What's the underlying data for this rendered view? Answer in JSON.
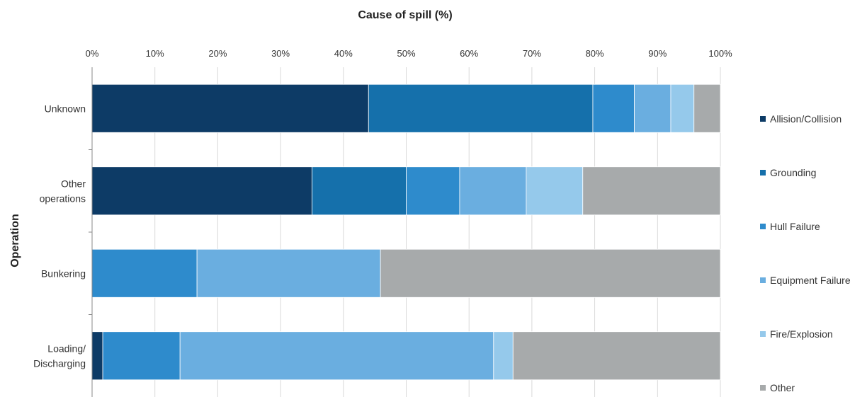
{
  "chart_data": {
    "type": "bar",
    "orientation": "horizontal",
    "stacked": true,
    "title": "Cause of spill (%)",
    "xlabel": "Cause of spill (%)",
    "ylabel": "Operation",
    "xlim": [
      0,
      100
    ],
    "x_ticks": [
      "0%",
      "10%",
      "20%",
      "30%",
      "40%",
      "50%",
      "60%",
      "70%",
      "80%",
      "90%",
      "100%"
    ],
    "categories": [
      [
        "Unknown"
      ],
      [
        "Other",
        "operations"
      ],
      [
        "Bunkering"
      ],
      [
        "Loading/",
        "Discharging"
      ]
    ],
    "series": [
      {
        "name": "Allision/Collision",
        "color": "#0d3b66",
        "values": [
          44,
          35,
          0,
          1.7
        ]
      },
      {
        "name": "Grounding",
        "color": "#1570ab",
        "values": [
          35.7,
          15,
          0,
          0
        ]
      },
      {
        "name": "Hull Failure",
        "color": "#2e8bcc",
        "values": [
          6.6,
          8.5,
          16.7,
          12.3
        ]
      },
      {
        "name": "Equipment Failure",
        "color": "#6aaee0",
        "values": [
          5.8,
          10.6,
          29.2,
          49.9
        ]
      },
      {
        "name": "Fire/Explosion",
        "color": "#95c9eb",
        "values": [
          3.7,
          9,
          0,
          3.1
        ]
      },
      {
        "name": "Other",
        "color": "#a7aaab",
        "values": [
          4.2,
          21.9,
          54.1,
          33
        ]
      }
    ],
    "grid": true,
    "legend_position": "right"
  }
}
